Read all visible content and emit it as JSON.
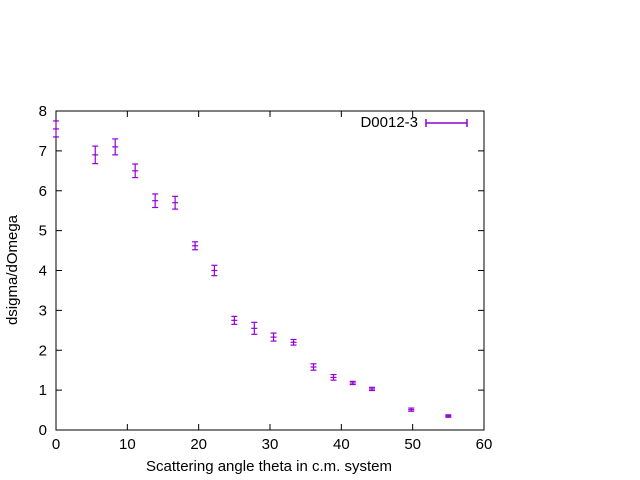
{
  "chart_data": {
    "type": "scatter",
    "title": "",
    "xlabel": "Scattering angle theta in c.m. system",
    "ylabel": "dsigma/dOmega",
    "xlim": [
      0,
      60
    ],
    "ylim": [
      0,
      8
    ],
    "xticks": [
      "0",
      "10",
      "20",
      "30",
      "40",
      "50",
      "60"
    ],
    "yticks": [
      "0",
      "1",
      "2",
      "3",
      "4",
      "5",
      "6",
      "7",
      "8"
    ],
    "grid": false,
    "legend_position": "top-right",
    "series": [
      {
        "name": "D0012-3",
        "color": "#9400d3",
        "style": "error-bars",
        "points": [
          {
            "x": 0.0,
            "y": 7.55,
            "err": 0.2
          },
          {
            "x": 5.5,
            "y": 6.9,
            "err": 0.22
          },
          {
            "x": 8.3,
            "y": 7.1,
            "err": 0.2
          },
          {
            "x": 11.1,
            "y": 6.5,
            "err": 0.17
          },
          {
            "x": 13.9,
            "y": 5.75,
            "err": 0.17
          },
          {
            "x": 16.7,
            "y": 5.7,
            "err": 0.16
          },
          {
            "x": 19.5,
            "y": 4.62,
            "err": 0.1
          },
          {
            "x": 22.2,
            "y": 4.0,
            "err": 0.13
          },
          {
            "x": 25.0,
            "y": 2.75,
            "err": 0.1
          },
          {
            "x": 27.8,
            "y": 2.55,
            "err": 0.15
          },
          {
            "x": 30.5,
            "y": 2.33,
            "err": 0.1
          },
          {
            "x": 33.3,
            "y": 2.2,
            "err": 0.07
          },
          {
            "x": 36.1,
            "y": 1.58,
            "err": 0.08
          },
          {
            "x": 38.9,
            "y": 1.32,
            "err": 0.07
          },
          {
            "x": 41.6,
            "y": 1.18,
            "err": 0.04
          },
          {
            "x": 44.3,
            "y": 1.03,
            "err": 0.04
          },
          {
            "x": 49.8,
            "y": 0.51,
            "err": 0.04
          },
          {
            "x": 55.0,
            "y": 0.35,
            "err": 0.03
          }
        ]
      }
    ]
  }
}
